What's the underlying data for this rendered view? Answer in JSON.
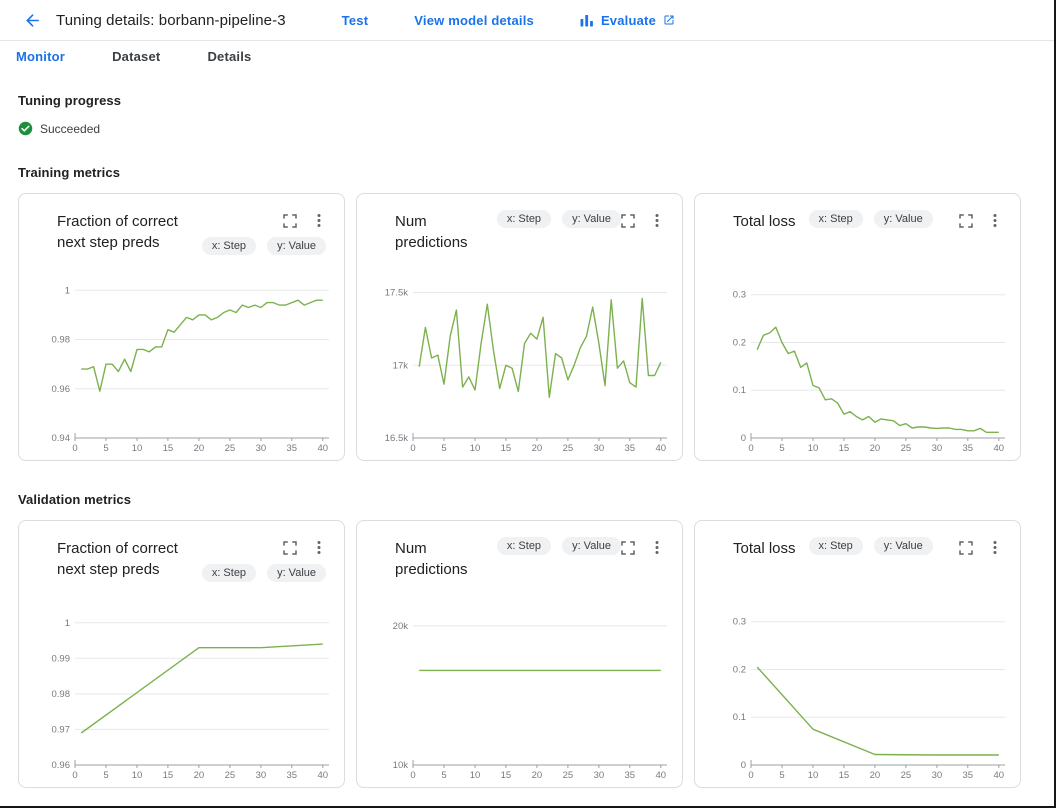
{
  "header": {
    "title": "Tuning details: borbann-pipeline-3",
    "actions": {
      "test": "Test",
      "view_model_details": "View model details",
      "evaluate": "Evaluate"
    }
  },
  "tabs": [
    {
      "label": "Monitor",
      "active": true
    },
    {
      "label": "Dataset",
      "active": false
    },
    {
      "label": "Details",
      "active": false
    }
  ],
  "sections": {
    "tuning_progress": {
      "heading": "Tuning progress",
      "status": "Succeeded"
    },
    "training": {
      "heading": "Training metrics"
    },
    "validation": {
      "heading": "Validation metrics"
    }
  },
  "colors": {
    "accent": "#1a73e8",
    "line": "#7cb14e",
    "success": "#1e8e3e",
    "grid": "#e7e8ea",
    "axis": "#9aa0a6"
  },
  "icon_names": [
    "back-arrow-icon",
    "bar-chart-icon",
    "external-link-icon",
    "success-check-icon",
    "fullscreen-icon",
    "kebab-menu-icon"
  ],
  "chart_data": [
    {
      "type": "line",
      "section": "training",
      "title": "Fraction of correct next step preds",
      "x_chip": "x: Step",
      "y_chip": "y: Value",
      "layout": {
        "title_wrap": true,
        "legend": "none",
        "grid": true
      },
      "xlim": [
        0,
        41
      ],
      "ylim": [
        0.94,
        1.005
      ],
      "xticks": [
        0,
        5,
        10,
        15,
        20,
        25,
        30,
        35,
        40
      ],
      "yticks": [
        0.94,
        0.96,
        0.98,
        1
      ],
      "ytick_labels": [
        "0.94",
        "0.96",
        "0.98",
        "1"
      ],
      "series": [
        {
          "name": "Value",
          "x": [
            1,
            2,
            3,
            4,
            5,
            6,
            7,
            8,
            9,
            10,
            11,
            12,
            13,
            14,
            15,
            16,
            17,
            18,
            19,
            20,
            21,
            22,
            23,
            24,
            25,
            26,
            27,
            28,
            29,
            30,
            31,
            32,
            33,
            34,
            35,
            36,
            37,
            38,
            39,
            40
          ],
          "y": [
            0.968,
            0.968,
            0.969,
            0.959,
            0.97,
            0.97,
            0.967,
            0.972,
            0.967,
            0.976,
            0.976,
            0.975,
            0.977,
            0.977,
            0.984,
            0.983,
            0.986,
            0.989,
            0.988,
            0.99,
            0.99,
            0.988,
            0.989,
            0.991,
            0.992,
            0.991,
            0.994,
            0.993,
            0.994,
            0.993,
            0.995,
            0.995,
            0.994,
            0.994,
            0.995,
            0.996,
            0.994,
            0.995,
            0.996,
            0.996
          ]
        }
      ]
    },
    {
      "type": "line",
      "section": "training",
      "title": "Num predictions",
      "x_chip": "x: Step",
      "y_chip": "y: Value",
      "layout": {
        "title_wrap": false,
        "legend": "none",
        "grid": true
      },
      "xlim": [
        0,
        41
      ],
      "ylim": [
        16500,
        17600
      ],
      "xticks": [
        0,
        5,
        10,
        15,
        20,
        25,
        30,
        35,
        40
      ],
      "yticks": [
        16500,
        17000,
        17500
      ],
      "ytick_labels": [
        "16.5k",
        "17k",
        "17.5k"
      ],
      "series": [
        {
          "name": "Value",
          "x": [
            1,
            2,
            3,
            4,
            5,
            6,
            7,
            8,
            9,
            10,
            11,
            12,
            13,
            14,
            15,
            16,
            17,
            18,
            19,
            20,
            21,
            22,
            23,
            24,
            25,
            26,
            27,
            28,
            29,
            30,
            31,
            32,
            33,
            34,
            35,
            36,
            37,
            38,
            39,
            40
          ],
          "y": [
            16990,
            17260,
            17050,
            17070,
            16870,
            17200,
            17380,
            16850,
            16920,
            16830,
            17150,
            17420,
            17100,
            16840,
            17000,
            16980,
            16820,
            17150,
            17220,
            17180,
            17330,
            16780,
            17080,
            17050,
            16900,
            17000,
            17120,
            17200,
            17400,
            17150,
            16860,
            17450,
            16980,
            17030,
            16880,
            16850,
            17460,
            16930,
            16930,
            17020
          ]
        }
      ]
    },
    {
      "type": "line",
      "section": "training",
      "title": "Total loss",
      "x_chip": "x: Step",
      "y_chip": "y: Value",
      "layout": {
        "title_wrap": false,
        "legend": "none",
        "grid": true
      },
      "xlim": [
        0,
        41
      ],
      "ylim": [
        0,
        0.335
      ],
      "xticks": [
        0,
        5,
        10,
        15,
        20,
        25,
        30,
        35,
        40
      ],
      "yticks": [
        0,
        0.1,
        0.2,
        0.3
      ],
      "ytick_labels": [
        "0",
        "0.1",
        "0.2",
        "0.3"
      ],
      "series": [
        {
          "name": "Value",
          "x": [
            1,
            2,
            3,
            4,
            5,
            6,
            7,
            8,
            9,
            10,
            11,
            12,
            13,
            14,
            15,
            16,
            17,
            18,
            19,
            20,
            21,
            22,
            23,
            24,
            25,
            26,
            27,
            28,
            29,
            30,
            31,
            32,
            33,
            34,
            35,
            36,
            37,
            38,
            39,
            40
          ],
          "y": [
            0.185,
            0.215,
            0.22,
            0.232,
            0.2,
            0.177,
            0.182,
            0.148,
            0.157,
            0.11,
            0.105,
            0.08,
            0.082,
            0.073,
            0.05,
            0.055,
            0.045,
            0.038,
            0.045,
            0.033,
            0.04,
            0.038,
            0.036,
            0.026,
            0.03,
            0.021,
            0.023,
            0.023,
            0.021,
            0.02,
            0.021,
            0.021,
            0.018,
            0.018,
            0.015,
            0.015,
            0.02,
            0.012,
            0.012,
            0.012
          ]
        }
      ]
    },
    {
      "type": "line",
      "section": "validation",
      "title": "Fraction of correct next step preds",
      "x_chip": "x: Step",
      "y_chip": "y: Value",
      "layout": {
        "title_wrap": true,
        "legend": "none",
        "grid": true
      },
      "xlim": [
        0,
        41
      ],
      "ylim": [
        0.96,
        1.005
      ],
      "xticks": [
        0,
        5,
        10,
        15,
        20,
        25,
        30,
        35,
        40
      ],
      "yticks": [
        0.96,
        0.97,
        0.98,
        0.99,
        1
      ],
      "ytick_labels": [
        "0.96",
        "0.97",
        "0.98",
        "0.99",
        "1"
      ],
      "series": [
        {
          "name": "Value",
          "x": [
            1,
            20,
            30,
            40
          ],
          "y": [
            0.969,
            0.993,
            0.993,
            0.994
          ]
        }
      ]
    },
    {
      "type": "line",
      "section": "validation",
      "title": "Num predictions",
      "x_chip": "x: Step",
      "y_chip": "y: Value",
      "layout": {
        "title_wrap": false,
        "legend": "none",
        "grid": true
      },
      "xlim": [
        0,
        41
      ],
      "ylim": [
        10000,
        21500
      ],
      "xticks": [
        0,
        5,
        10,
        15,
        20,
        25,
        30,
        35,
        40
      ],
      "yticks": [
        10000,
        20000
      ],
      "ytick_labels": [
        "10k",
        "20k"
      ],
      "series": [
        {
          "name": "Value",
          "x": [
            1,
            40
          ],
          "y": [
            16800,
            16800
          ]
        }
      ]
    },
    {
      "type": "line",
      "section": "validation",
      "title": "Total loss",
      "x_chip": "x: Step",
      "y_chip": "y: Value",
      "layout": {
        "title_wrap": false,
        "legend": "none",
        "grid": true
      },
      "xlim": [
        0,
        41
      ],
      "ylim": [
        0,
        0.335
      ],
      "xticks": [
        0,
        5,
        10,
        15,
        20,
        25,
        30,
        35,
        40
      ],
      "yticks": [
        0,
        0.1,
        0.2,
        0.3
      ],
      "ytick_labels": [
        "0",
        "0.1",
        "0.2",
        "0.3"
      ],
      "series": [
        {
          "name": "Value",
          "x": [
            1,
            10,
            20,
            30,
            40
          ],
          "y": [
            0.205,
            0.075,
            0.022,
            0.021,
            0.021
          ]
        }
      ]
    }
  ]
}
